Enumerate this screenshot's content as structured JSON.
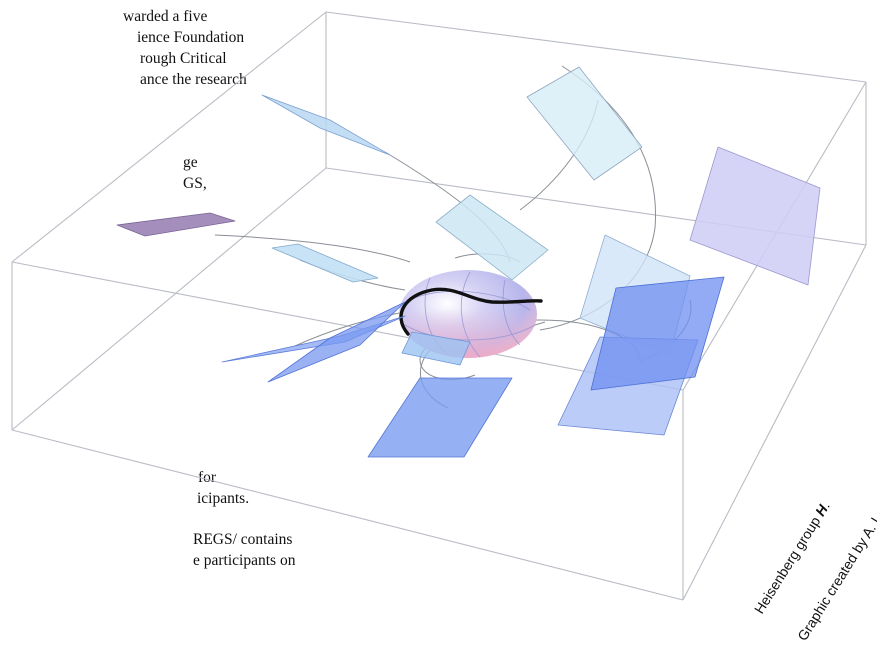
{
  "background_text": {
    "lines_top": [
      "warded a five",
      "ience Foundation",
      "rough Critical",
      "ance the research",
      "",
      "ge",
      "GS,"
    ],
    "lines_bottom": [
      "for",
      "icipants.",
      "",
      "REGS/ contains",
      "e participants on"
    ]
  },
  "caption": {
    "line1_prefix": "Heisenberg group ",
    "line1_symbol": "H",
    "line1_suffix": ".",
    "line2": "Graphic created by A. Lukyanenko."
  },
  "colors": {
    "box_edge": "#b8bcc4",
    "curve": "#8a8e96",
    "plane_blue": "#6f8ff0",
    "plane_light": "#bfe2f2",
    "plane_lavender": "#c9c6f3",
    "plane_purple": "#9a83b5",
    "sphere_main": "#c9c4ee",
    "sphere_pink": "#f0c0d4",
    "black_path": "#111111"
  }
}
